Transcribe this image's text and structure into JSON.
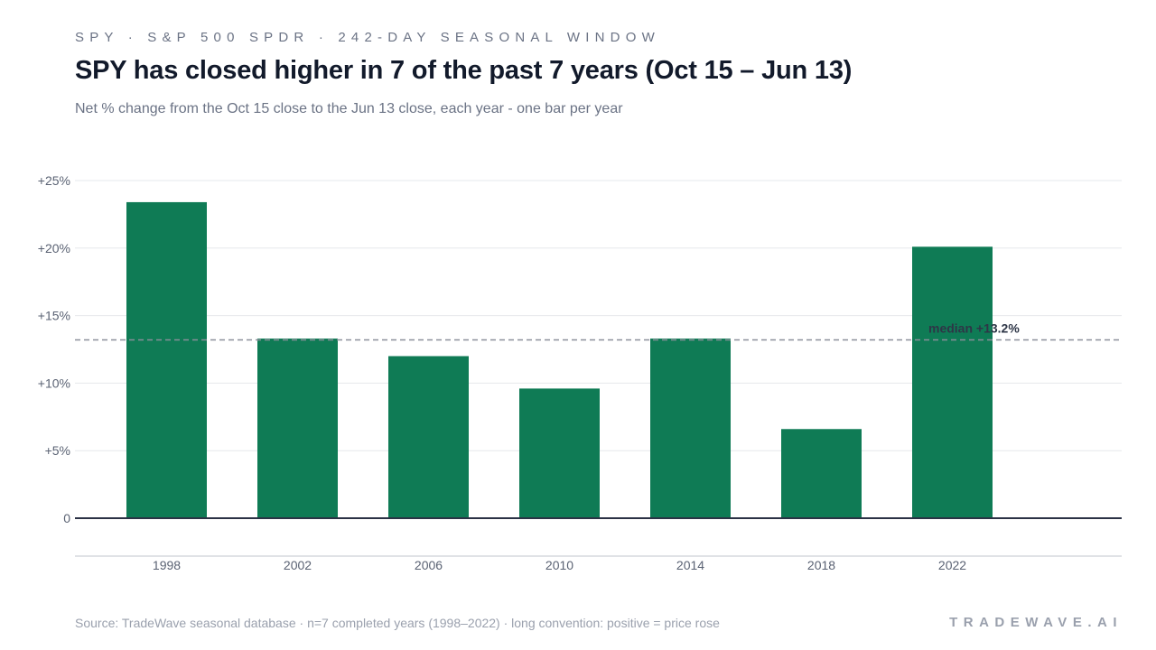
{
  "header": {
    "kicker": "SPY · S&P 500 SPDR · 242-DAY SEASONAL WINDOW",
    "title": "SPY has closed higher in 7 of the past 7 years (Oct 15 – Jun 13)",
    "subtitle": "Net % change from the Oct 15 close to the Jun 13 close, each year - one bar per year"
  },
  "footer": {
    "source": "Source: TradeWave seasonal database · n=7 completed years (1998–2022) · long convention: positive = price rose",
    "brand": "TRADEWAVE.AI"
  },
  "colors": {
    "bar": "#0f7b55",
    "median_line": "#8a8f99",
    "axis": "#2b3245",
    "grid": "#e6e8ec"
  },
  "chart_data": {
    "type": "bar",
    "categories": [
      "1998",
      "2002",
      "2006",
      "2010",
      "2014",
      "2018",
      "2022"
    ],
    "values": [
      23.4,
      13.3,
      12.0,
      9.6,
      13.3,
      6.6,
      20.1
    ],
    "ylim": [
      0,
      25
    ],
    "yticks": [
      0,
      5,
      10,
      15,
      20,
      25
    ],
    "ytick_labels": [
      "0",
      "+5%",
      "+10%",
      "+15%",
      "+20%",
      "+25%"
    ],
    "median": 13.2,
    "median_label": "median +13.2%",
    "grid": true
  }
}
